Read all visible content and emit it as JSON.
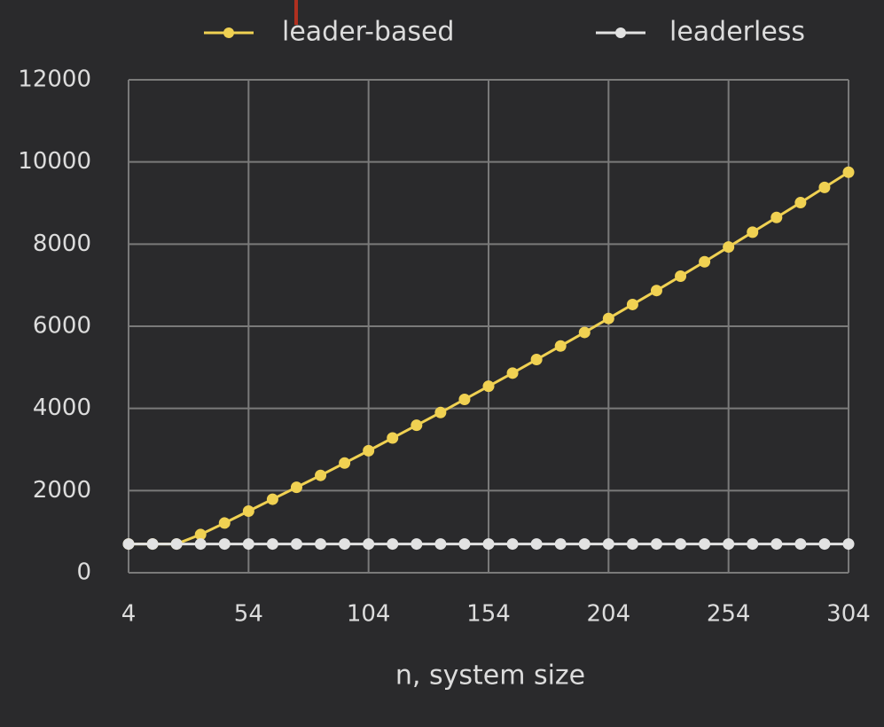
{
  "chart_data": {
    "type": "line",
    "x_label": "n, system size",
    "x": [
      4,
      14,
      24,
      34,
      44,
      54,
      64,
      74,
      84,
      94,
      104,
      114,
      124,
      134,
      144,
      154,
      164,
      174,
      184,
      194,
      204,
      214,
      224,
      234,
      244,
      254,
      264,
      274,
      284,
      294,
      304
    ],
    "series": [
      {
        "name": "leader-based",
        "color": "#f0d152",
        "values": [
          700,
          700,
          700,
          930,
          1210,
          1500,
          1790,
          2080,
          2370,
          2670,
          2970,
          3280,
          3590,
          3900,
          4220,
          4540,
          4860,
          5190,
          5520,
          5850,
          6190,
          6530,
          6870,
          7220,
          7570,
          7930,
          8290,
          8650,
          9010,
          9380,
          9750
        ]
      },
      {
        "name": "leaderless",
        "color": "#e2e2e2",
        "values": [
          700,
          700,
          700,
          700,
          700,
          700,
          700,
          700,
          700,
          700,
          700,
          700,
          700,
          700,
          700,
          700,
          700,
          700,
          700,
          700,
          700,
          700,
          700,
          700,
          700,
          700,
          700,
          700,
          700,
          700,
          700
        ]
      }
    ],
    "xlim": [
      4,
      304
    ],
    "xticks": [
      4,
      54,
      104,
      154,
      204,
      254,
      304
    ],
    "ylim": [
      0,
      12000
    ],
    "yticks": [
      0,
      2000,
      4000,
      6000,
      8000,
      10000,
      12000
    ],
    "grid": true
  }
}
